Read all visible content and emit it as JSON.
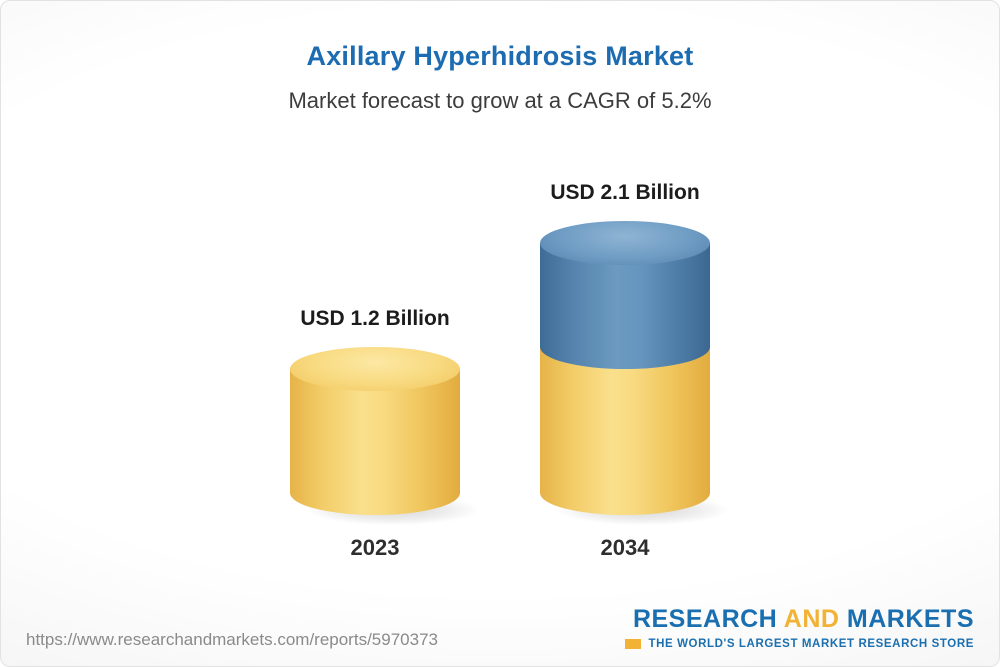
{
  "page": {
    "title": "Axillary Hyperhidrosis Market",
    "subtitle": "Market forecast to grow at a CAGR of 5.2%"
  },
  "chart_data": {
    "type": "bar",
    "style": "3d-cylinder",
    "title": "Axillary Hyperhidrosis Market",
    "subtitle": "Market forecast to grow at a CAGR of 5.2%",
    "cagr_percent": 5.2,
    "unit": "USD Billion",
    "categories": [
      "2023",
      "2034"
    ],
    "values": [
      1.2,
      2.1
    ],
    "value_labels": [
      "USD 1.2 Billion",
      "USD 2.1 Billion"
    ],
    "series": [
      {
        "name": "base-value",
        "color": "#F3CB61",
        "values": [
          1.2,
          1.2
        ]
      },
      {
        "name": "forecast-growth",
        "color": "#4E7FAC",
        "values": [
          0,
          0.9
        ]
      }
    ],
    "legend": "none",
    "grid": false,
    "xlabel": "",
    "ylabel": ""
  },
  "footer": {
    "url": "https://www.researchandmarkets.com/reports/5970373",
    "logo": {
      "research": "RESEARCH",
      "and": "AND",
      "markets": "MARKETS",
      "tagline": "THE WORLD'S LARGEST MARKET RESEARCH STORE"
    }
  },
  "colors": {
    "title_blue": "#1d6cb1",
    "bar_yellow": "#F3CB61",
    "bar_blue": "#4E7FAC",
    "logo_blue": "#1a6fb0",
    "logo_yellow": "#f2b233"
  }
}
